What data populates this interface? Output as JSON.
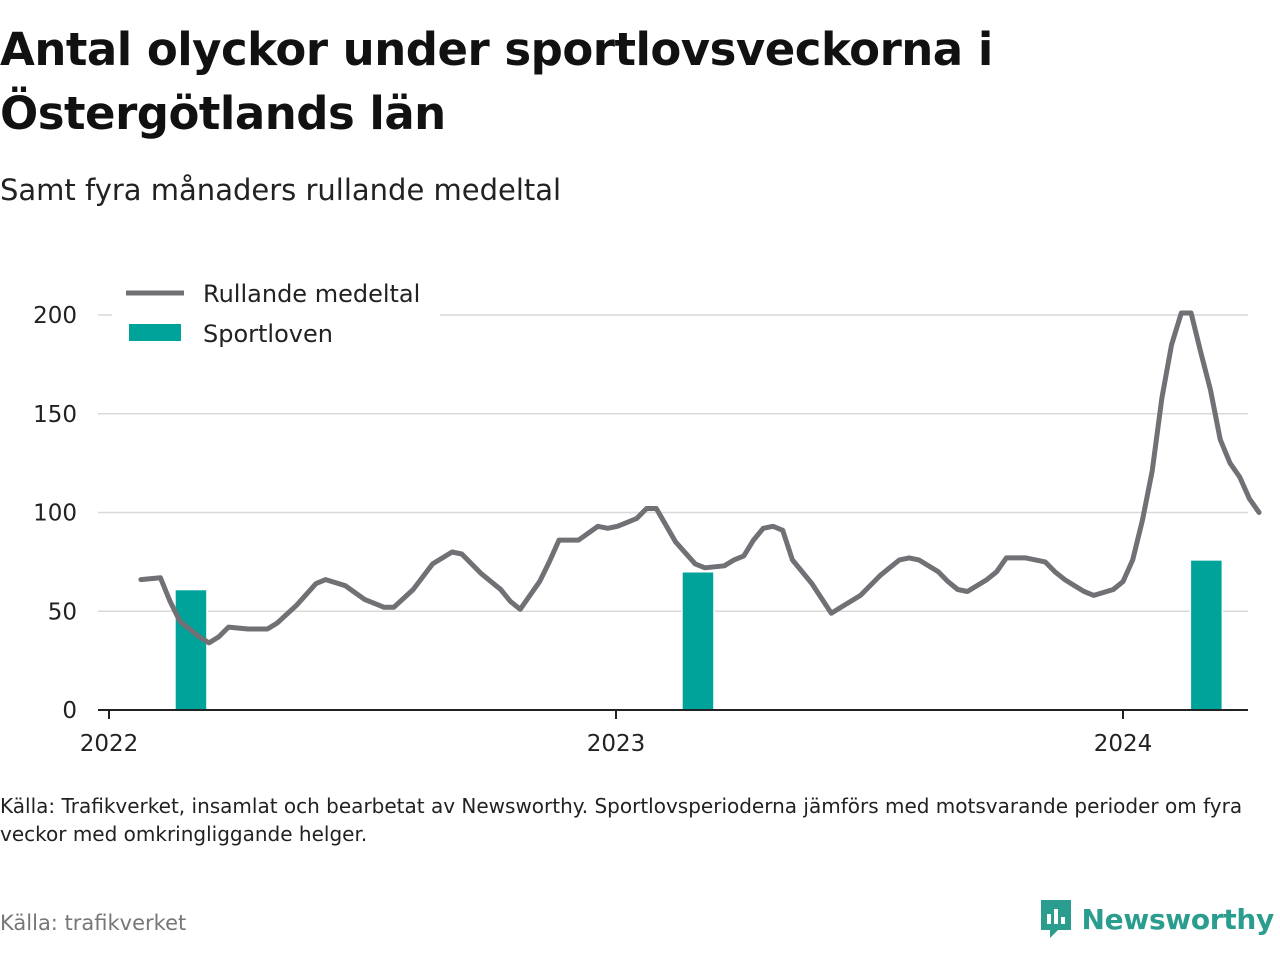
{
  "title": "Antal olyckor under sportlovsveckorna i Östergötlands län",
  "subtitle": "Samt fyra månaders rullande medeltal",
  "note": "Källa: Trafikverket, insamlat och bearbetat av Newsworthy. Sportlovsperioderna jämförs med motsvarande perioder om fyra veckor med omkringliggande helger.",
  "source": "Källa: trafikverket",
  "brand": {
    "name": "Newsworthy",
    "icon": "newsworthy-logo-icon",
    "color": "#2a9d8f"
  },
  "chart_data": {
    "type": "line",
    "title": "Antal olyckor under sportlovsveckorna i Östergötlands län",
    "subtitle": "Samt fyra månaders rullande medeltal",
    "ylim": [
      0,
      215
    ],
    "yticks": [
      "0",
      "50",
      "100",
      "150",
      "200"
    ],
    "xticks": [
      "2022",
      "2023",
      "2024"
    ],
    "grid": true,
    "legend_position": "top-left",
    "colors": {
      "line": "#707075",
      "bar": "#00a39a",
      "grid": "#d9d9d9",
      "axis": "#222222"
    },
    "series": [
      {
        "name": "Rullande medeltal",
        "type": "line",
        "points": [
          [
            "2022-01-24",
            66
          ],
          [
            "2022-02-07",
            67
          ],
          [
            "2022-02-14",
            55
          ],
          [
            "2022-02-21",
            45
          ],
          [
            "2022-03-07",
            37
          ],
          [
            "2022-03-14",
            34
          ],
          [
            "2022-03-21",
            37
          ],
          [
            "2022-03-28",
            42
          ],
          [
            "2022-04-11",
            41
          ],
          [
            "2022-04-25",
            41
          ],
          [
            "2022-05-02",
            44
          ],
          [
            "2022-05-16",
            53
          ],
          [
            "2022-05-30",
            64
          ],
          [
            "2022-06-06",
            66
          ],
          [
            "2022-06-20",
            63
          ],
          [
            "2022-07-04",
            56
          ],
          [
            "2022-07-18",
            52
          ],
          [
            "2022-07-25",
            52
          ],
          [
            "2022-08-08",
            61
          ],
          [
            "2022-08-22",
            74
          ],
          [
            "2022-09-05",
            80
          ],
          [
            "2022-09-12",
            79
          ],
          [
            "2022-09-26",
            69
          ],
          [
            "2022-10-10",
            61
          ],
          [
            "2022-10-17",
            55
          ],
          [
            "2022-10-24",
            51
          ],
          [
            "2022-11-07",
            65
          ],
          [
            "2022-11-14",
            75
          ],
          [
            "2022-11-21",
            86
          ],
          [
            "2022-12-05",
            86
          ],
          [
            "2022-12-19",
            93
          ],
          [
            "2022-12-26",
            92
          ],
          [
            "2023-01-02",
            93
          ],
          [
            "2023-01-09",
            95
          ],
          [
            "2023-01-16",
            97
          ],
          [
            "2023-01-23",
            102
          ],
          [
            "2023-01-30",
            102
          ],
          [
            "2023-02-13",
            85
          ],
          [
            "2023-02-27",
            74
          ],
          [
            "2023-03-06",
            72
          ],
          [
            "2023-03-20",
            73
          ],
          [
            "2023-03-27",
            76
          ],
          [
            "2023-04-03",
            78
          ],
          [
            "2023-04-10",
            86
          ],
          [
            "2023-04-17",
            92
          ],
          [
            "2023-04-24",
            93
          ],
          [
            "2023-05-01",
            91
          ],
          [
            "2023-05-08",
            76
          ],
          [
            "2023-05-22",
            64
          ],
          [
            "2023-06-05",
            49
          ],
          [
            "2023-06-12",
            52
          ],
          [
            "2023-06-26",
            58
          ],
          [
            "2023-07-10",
            68
          ],
          [
            "2023-07-24",
            76
          ],
          [
            "2023-07-31",
            77
          ],
          [
            "2023-08-07",
            76
          ],
          [
            "2023-08-21",
            70
          ],
          [
            "2023-08-28",
            65
          ],
          [
            "2023-09-04",
            61
          ],
          [
            "2023-09-11",
            60
          ],
          [
            "2023-09-25",
            66
          ],
          [
            "2023-10-02",
            70
          ],
          [
            "2023-10-09",
            77
          ],
          [
            "2023-10-23",
            77
          ],
          [
            "2023-11-06",
            75
          ],
          [
            "2023-11-13",
            70
          ],
          [
            "2023-11-20",
            66
          ],
          [
            "2023-11-27",
            63
          ],
          [
            "2023-12-04",
            60
          ],
          [
            "2023-12-11",
            58
          ],
          [
            "2023-12-25",
            61
          ],
          [
            "2024-01-01",
            65
          ],
          [
            "2024-01-08",
            76
          ],
          [
            "2024-01-15",
            96
          ],
          [
            "2024-01-22",
            121
          ],
          [
            "2024-01-29",
            158
          ],
          [
            "2024-02-05",
            185
          ],
          [
            "2024-02-12",
            201
          ],
          [
            "2024-02-19",
            201
          ],
          [
            "2024-02-26",
            181
          ],
          [
            "2024-03-04",
            162
          ],
          [
            "2024-03-11",
            137
          ],
          [
            "2024-03-18",
            125
          ],
          [
            "2024-03-25",
            118
          ],
          [
            "2024-04-01",
            107
          ],
          [
            "2024-04-08",
            100
          ]
        ]
      },
      {
        "name": "Sportloven",
        "type": "bar",
        "points": [
          [
            "2022-03-01",
            61
          ],
          [
            "2023-03-01",
            70
          ],
          [
            "2024-03-01",
            76
          ]
        ]
      }
    ]
  }
}
